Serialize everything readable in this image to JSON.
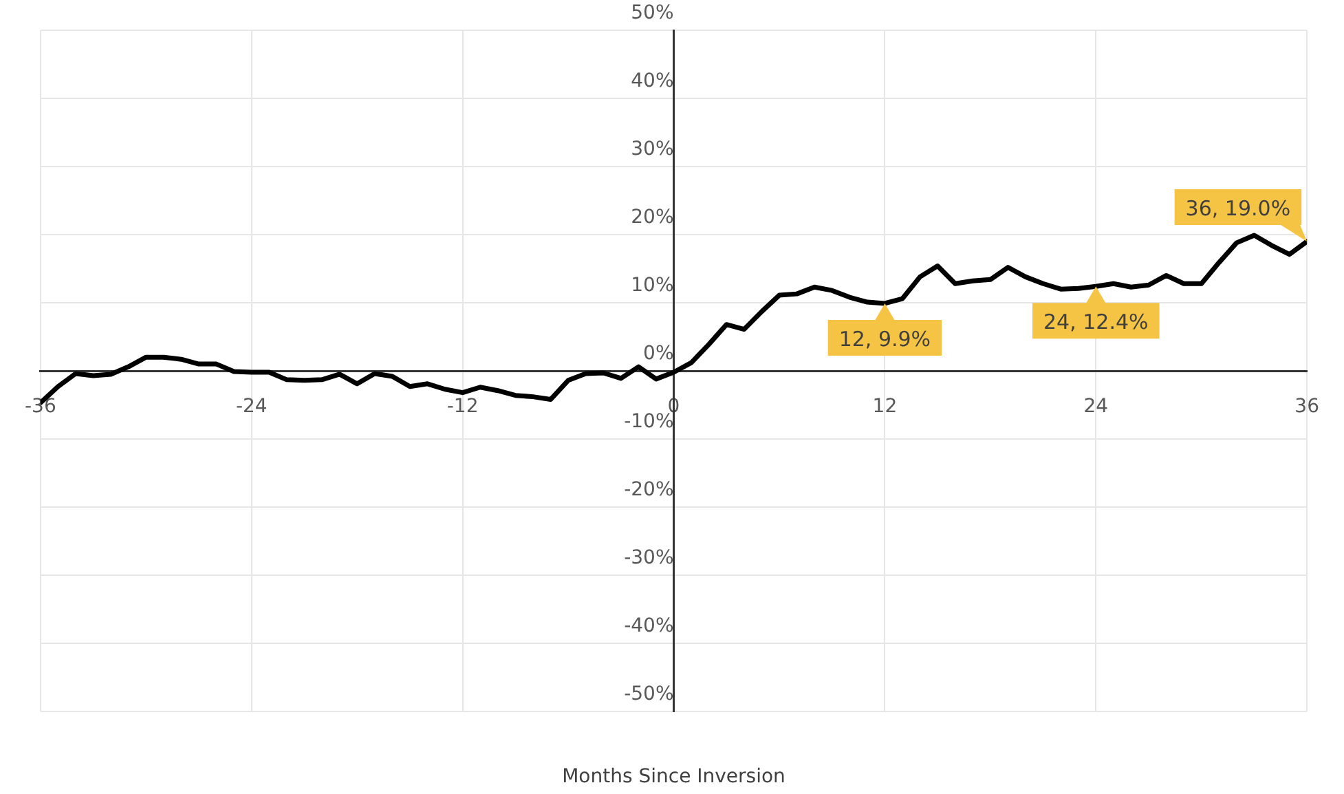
{
  "chart_data": {
    "type": "line",
    "xlabel": "Months Since Inversion",
    "x": [
      -36,
      -35,
      -34,
      -33,
      -32,
      -31,
      -30,
      -29,
      -28,
      -27,
      -26,
      -25,
      -24,
      -23,
      -22,
      -21,
      -20,
      -19,
      -18,
      -17,
      -16,
      -15,
      -14,
      -13,
      -12,
      -11,
      -10,
      -9,
      -8,
      -7,
      -6,
      -5,
      -4,
      -3,
      -2,
      -1,
      0,
      1,
      2,
      3,
      4,
      5,
      6,
      7,
      8,
      9,
      10,
      11,
      12,
      13,
      14,
      15,
      16,
      17,
      18,
      19,
      20,
      21,
      22,
      23,
      24,
      25,
      26,
      27,
      28,
      29,
      30,
      31,
      32,
      33,
      34,
      35,
      36
    ],
    "series": [
      {
        "color": "#000000",
        "values": [
          -4.7,
          -2.3,
          -0.4,
          -0.7,
          -0.5,
          0.6,
          2.0,
          2.0,
          1.7,
          1.0,
          1.0,
          -0.1,
          -0.2,
          -0.2,
          -1.3,
          -1.4,
          -1.3,
          -0.5,
          -1.9,
          -0.4,
          -0.8,
          -2.3,
          -1.9,
          -2.7,
          -3.2,
          -2.4,
          -2.9,
          -3.6,
          -3.8,
          -4.2,
          -1.4,
          -0.4,
          -0.3,
          -1.1,
          0.6,
          -1.2,
          -0.2,
          1.2,
          3.9,
          6.8,
          6.1,
          8.7,
          11.1,
          11.3,
          12.3,
          11.8,
          10.8,
          10.1,
          9.9,
          10.6,
          13.8,
          15.4,
          12.8,
          13.2,
          13.4,
          15.2,
          13.8,
          12.8,
          12.0,
          12.1,
          12.4,
          12.8,
          12.3,
          12.6,
          14.0,
          12.8,
          12.8,
          15.9,
          18.8,
          19.9,
          18.4,
          17.1,
          19.0
        ]
      }
    ],
    "xlim": [
      -36,
      36
    ],
    "xticks": [
      -36,
      -24,
      -12,
      0,
      12,
      24,
      36
    ],
    "ylim": [
      -50,
      50
    ],
    "yticks": [
      {
        "value": -50,
        "label": "-50%"
      },
      {
        "value": -40,
        "label": "-40%"
      },
      {
        "value": -30,
        "label": "-30%"
      },
      {
        "value": -20,
        "label": "-20%"
      },
      {
        "value": -10,
        "label": "-10%"
      },
      {
        "value": 0,
        "label": "0%"
      },
      {
        "value": 10,
        "label": "10%"
      },
      {
        "value": 20,
        "label": "20%"
      },
      {
        "value": 30,
        "label": "30%"
      },
      {
        "value": 40,
        "label": "40%"
      },
      {
        "value": 50,
        "label": "50%"
      }
    ],
    "annotations": [
      {
        "text": "12, 9.9%",
        "x": 12,
        "y": 9.9
      },
      {
        "text": "24, 12.4%",
        "x": 24,
        "y": 12.4
      },
      {
        "text": "36, 19.0%",
        "x": 36,
        "y": 19.0
      }
    ],
    "grid": true,
    "legend": false,
    "marker": "none",
    "line_style": "solid"
  }
}
